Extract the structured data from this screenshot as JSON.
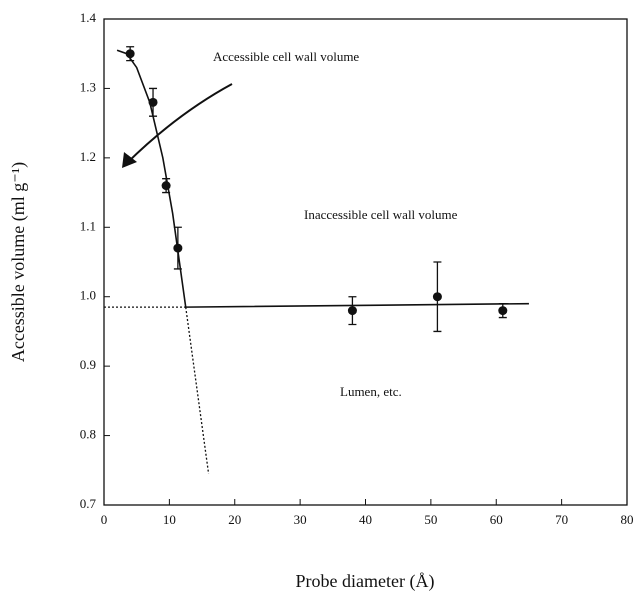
{
  "chart_data": {
    "type": "scatter",
    "x_label": "Probe diameter (Å)",
    "y_label": "Accessible volume (ml g⁻¹)",
    "xlim": [
      0,
      80
    ],
    "ylim": [
      0.7,
      1.4
    ],
    "xticks": [
      0,
      10,
      20,
      30,
      40,
      50,
      60,
      70,
      80
    ],
    "yticks": [
      0.7,
      0.8,
      0.9,
      {
        "value": 1,
        "label": "1.0"
      },
      1.1,
      1.2,
      1.3,
      1.4
    ],
    "annotations": [
      "Accessible cell wall volume",
      "Inaccessible cell wall volume",
      "Lumen, etc."
    ],
    "series": [
      {
        "type": "scatter",
        "color": "#111",
        "x": [
          4,
          7.5,
          9.5,
          11.3,
          38,
          51,
          61
        ],
        "values": [
          1.35,
          1.28,
          1.16,
          1.07,
          0.98,
          1.0,
          0.98
        ],
        "errors": [
          0.01,
          0.02,
          0.01,
          0.03,
          0.02,
          0.05,
          0.01
        ]
      },
      {
        "type": "line",
        "style": "solid",
        "color": "#111",
        "x": [
          2,
          3.5,
          5,
          7,
          9,
          10.5,
          12.5,
          65
        ],
        "values": [
          1.355,
          1.35,
          1.33,
          1.28,
          1.2,
          1.12,
          0.985,
          0.99
        ]
      },
      {
        "type": "line",
        "style": "dashed",
        "color": "#111",
        "x": [
          0,
          12.5
        ],
        "values": [
          0.985,
          0.985
        ]
      },
      {
        "type": "line",
        "style": "dashed",
        "color": "#111",
        "x": [
          12.5,
          16
        ],
        "values": [
          0.985,
          0.745
        ]
      }
    ]
  }
}
